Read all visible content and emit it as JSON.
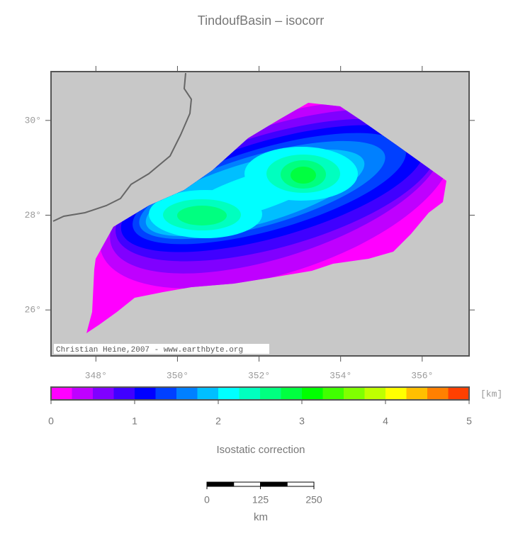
{
  "title": "TindoufBasin – isocorr",
  "map": {
    "xlim": [
      346.9,
      357.15
    ],
    "ylim": [
      25.03,
      31.03
    ],
    "xticks": [
      {
        "value": 348,
        "label": "348°"
      },
      {
        "value": 350,
        "label": "350°"
      },
      {
        "value": 352,
        "label": "352°"
      },
      {
        "value": 354,
        "label": "354°"
      },
      {
        "value": 356,
        "label": "356°"
      }
    ],
    "yticks": [
      {
        "value": 26,
        "label": "26°"
      },
      {
        "value": 28,
        "label": "28°"
      },
      {
        "value": 30,
        "label": "30°"
      }
    ],
    "credit": "Christian Heine,2007 - www.earthbyte.org"
  },
  "colorbar": {
    "title": "Isostatic correction",
    "unit": "[km]",
    "levels": [
      0,
      0.25,
      0.5,
      0.75,
      1,
      1.25,
      1.5,
      1.75,
      2,
      2.25,
      2.5,
      2.75,
      3,
      3.25,
      3.5,
      3.75,
      4,
      4.25,
      4.5,
      4.75,
      5
    ],
    "colors": [
      "#ff00ff",
      "#bf00ff",
      "#8000ff",
      "#4000ff",
      "#0000ff",
      "#0040ff",
      "#0080ff",
      "#00bfff",
      "#00ffff",
      "#00ffbf",
      "#00ff80",
      "#00ff40",
      "#00ff00",
      "#40ff00",
      "#80ff00",
      "#bfff00",
      "#ffff00",
      "#ffbf00",
      "#ff8000",
      "#ff4000"
    ],
    "ticks": [
      0,
      1,
      2,
      3,
      4,
      5
    ]
  },
  "scale_bar": {
    "lim": [
      0,
      250
    ],
    "ticks": [
      0,
      125,
      250
    ],
    "unit": "km"
  }
}
